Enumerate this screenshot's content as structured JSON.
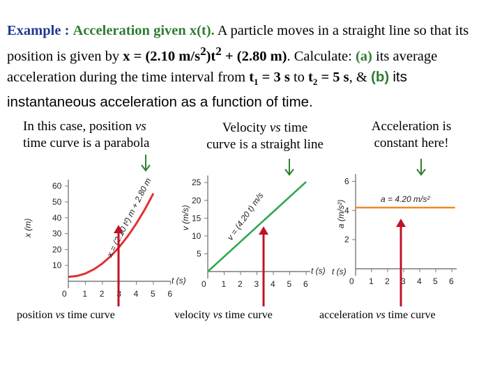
{
  "title": {
    "example": "Example :",
    "topic": "Acceleration given x(t).",
    "p1": "A particle moves in a straight line so that its position is given by",
    "eq_x": "x = (2.10 m/s",
    "eq_sup": "2",
    "eq_t": ")t",
    "eq_t_sup": "2",
    "eq_plus": "+ (2.80 m)",
    "p2": ". Calculate:",
    "part_a": "(a)",
    "p3": "its average acceleration during the time interval from",
    "t1": "t",
    "t1_sub": "1",
    "eq3": "= 3 s",
    "to": "to",
    "t2": "t",
    "t2_sub": "2",
    "eq5": "= 5 s",
    "amp": ", &",
    "part_b": "(b)",
    "p4": "its instantaneous acceleration as a function of time."
  },
  "captions": {
    "left_line1": "In this case, position ",
    "left_vs": "vs",
    "left_line2": "time curve is a parabola",
    "mid_line1a": "Velocity ",
    "mid_vs": "vs",
    "mid_line1b": " time",
    "mid_line2": "curve is a straight line",
    "right_line1": "Acceleration is",
    "right_line2": "constant here!"
  },
  "bottom": {
    "pos_a": "position ",
    "pos_vs": "vs",
    "pos_b": " time curve",
    "vel_a": "velocity ",
    "vel_vs": "vs",
    "vel_b": " time curve",
    "acc_a": "acceleration ",
    "acc_vs": "vs",
    "acc_b": " time curve"
  },
  "colors": {
    "curve": "#e03131",
    "line": "#2ea84f",
    "const": "#f08a24",
    "arrow": "#c0122a",
    "axis": "#7a7a7a",
    "navy": "#1f3a93"
  },
  "chart_data": [
    {
      "type": "line",
      "xlabel": "t (s)",
      "ylabel": "x (m)",
      "x_ticks": [
        "1",
        "2",
        "3",
        "4",
        "5",
        "6"
      ],
      "y_ticks": [
        "10",
        "20",
        "30",
        "40",
        "50",
        "60"
      ],
      "origin_label": "0",
      "xlim": [
        0,
        6.2
      ],
      "ylim": [
        0,
        64
      ],
      "annotation": "x = (2.10 t²) m + 2.80 m",
      "series": [
        {
          "x": [
            0,
            0.5,
            1,
            1.5,
            2,
            2.5,
            3,
            3.5,
            4,
            4.5,
            5
          ],
          "y": [
            2.8,
            3.33,
            4.9,
            7.53,
            11.2,
            15.93,
            21.7,
            28.53,
            36.4,
            45.33,
            55.3
          ]
        }
      ]
    },
    {
      "type": "line",
      "xlabel": "t (s)",
      "ylabel": "v (m/s)",
      "x_ticks": [
        "1",
        "2",
        "3",
        "4",
        "5",
        "6"
      ],
      "y_ticks": [
        "5",
        "10",
        "15",
        "20",
        "25"
      ],
      "origin_label": "0",
      "xlim": [
        0,
        6.2
      ],
      "ylim": [
        0,
        27
      ],
      "annotation": "v = (4.20 t) m/s",
      "series": [
        {
          "x": [
            0,
            6
          ],
          "y": [
            0,
            25.2
          ]
        }
      ]
    },
    {
      "type": "line",
      "xlabel": "t (s)",
      "ylabel": "a (m/s²)",
      "x_ticks": [
        "1",
        "2",
        "3",
        "4",
        "5",
        "6"
      ],
      "y_ticks": [
        "2",
        "4",
        "6"
      ],
      "origin_label": "0",
      "xlim": [
        0,
        6.2
      ],
      "ylim": [
        0,
        6.5
      ],
      "annotation": "a = 4.20 m/s²",
      "series": [
        {
          "x": [
            0,
            6.2
          ],
          "y": [
            4.2,
            4.2
          ]
        }
      ]
    }
  ]
}
